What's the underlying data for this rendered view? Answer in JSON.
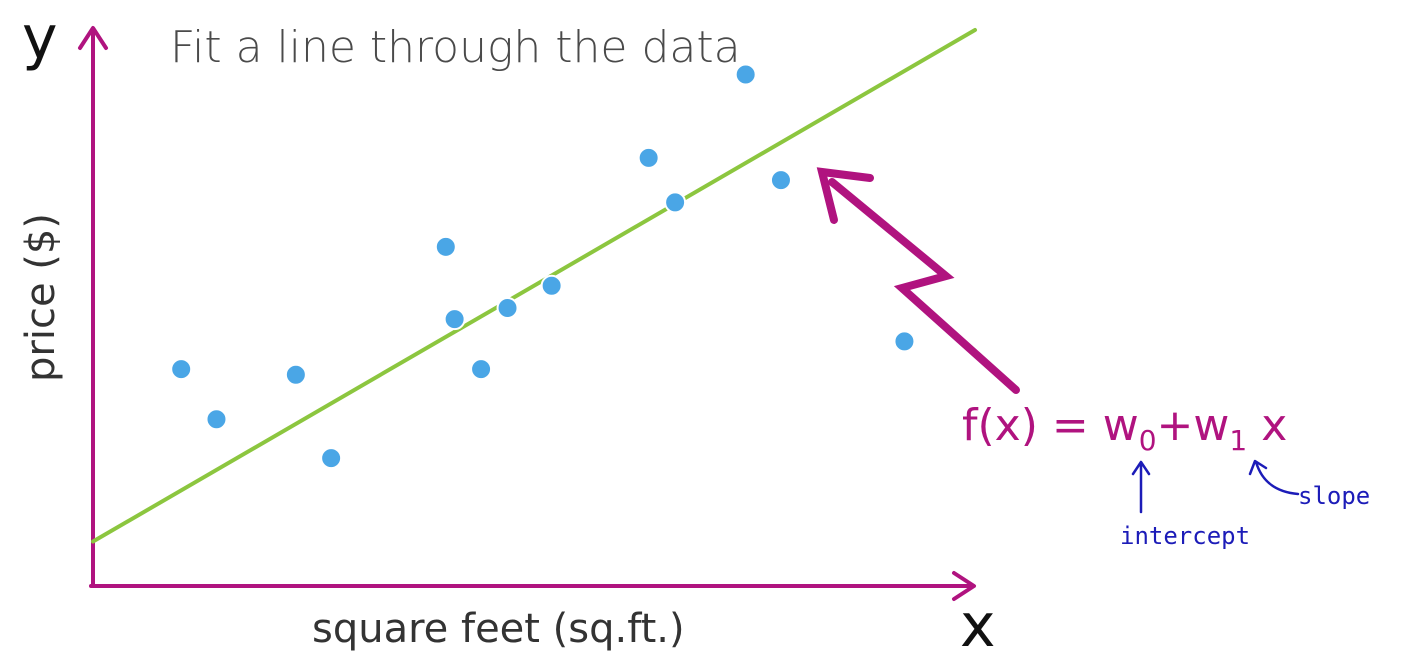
{
  "slide": {
    "title": "Fit a line through the data",
    "axis_y_letter": "y",
    "axis_x_letter": "x",
    "formula": {
      "lhs": "f(x) = ",
      "w0": "w",
      "w0_sub": "0",
      "plus": "+",
      "w1": "w",
      "w1_sub": "1",
      "x": " x"
    },
    "annotation_intercept": "intercept",
    "annotation_slope": "slope"
  },
  "colors": {
    "axis": "#b0137f",
    "fit_line": "#8cc63f",
    "points": "#4aa6e6",
    "formula": "#b0137f",
    "handwriting": "#1c1cb8"
  },
  "chart_data": {
    "type": "scatter",
    "title": "Fit a line through the data",
    "xlabel": "square feet (sq.ft.)",
    "ylabel": "price ($)",
    "xlim": [
      0,
      100
    ],
    "ylim": [
      0,
      100
    ],
    "grid": false,
    "points": [
      {
        "x": 10,
        "y": 39
      },
      {
        "x": 14,
        "y": 30
      },
      {
        "x": 23,
        "y": 38
      },
      {
        "x": 27,
        "y": 23
      },
      {
        "x": 40,
        "y": 61
      },
      {
        "x": 41,
        "y": 48
      },
      {
        "x": 44,
        "y": 39
      },
      {
        "x": 47,
        "y": 50
      },
      {
        "x": 52,
        "y": 54
      },
      {
        "x": 63,
        "y": 77
      },
      {
        "x": 66,
        "y": 69
      },
      {
        "x": 74,
        "y": 92
      },
      {
        "x": 78,
        "y": 73
      },
      {
        "x": 92,
        "y": 44
      }
    ],
    "fit_line": {
      "x": [
        0,
        100
      ],
      "y": [
        8,
        100
      ]
    }
  }
}
